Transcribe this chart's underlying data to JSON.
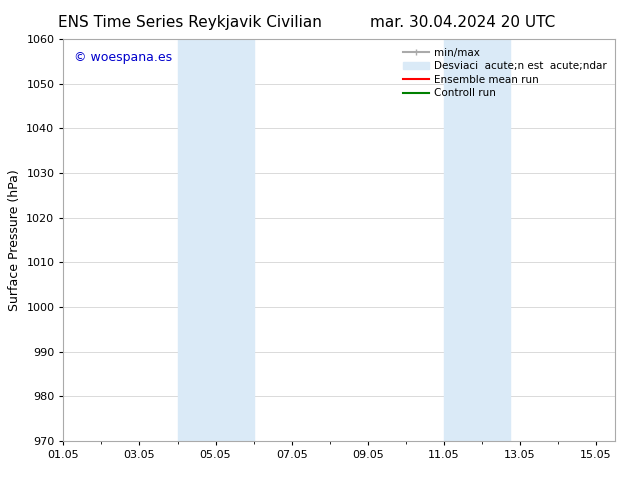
{
  "title_left": "ENS Time Series Reykjavik Civilian",
  "title_right": "mar. 30.04.2024 20 UTC",
  "ylabel": "Surface Pressure (hPa)",
  "ylim": [
    970,
    1060
  ],
  "yticks": [
    970,
    980,
    990,
    1000,
    1010,
    1020,
    1030,
    1040,
    1050,
    1060
  ],
  "xtick_labels": [
    "01.05",
    "03.05",
    "05.05",
    "07.05",
    "09.05",
    "11.05",
    "13.05",
    "15.05"
  ],
  "xtick_positions": [
    1,
    3,
    5,
    7,
    9,
    11,
    13,
    15
  ],
  "xlim": [
    1,
    15.5
  ],
  "shaded_bands": [
    {
      "x_start": 4.0,
      "x_end": 6.0
    },
    {
      "x_start": 11.0,
      "x_end": 12.75
    }
  ],
  "shaded_color": "#daeaf7",
  "watermark_text": "© woespana.es",
  "watermark_color": "#0000cc",
  "legend_label_minmax": "min/max",
  "legend_label_std": "Desviaci  acute;n est  acute;ndar",
  "legend_label_ensemble": "Ensemble mean run",
  "legend_label_control": "Controll run",
  "legend_color_minmax": "#aaaaaa",
  "legend_color_std": "#daeaf7",
  "legend_color_ensemble": "red",
  "legend_color_control": "green",
  "bg_color": "#ffffff",
  "grid_color": "#cccccc",
  "title_fontsize": 11,
  "tick_fontsize": 8,
  "ylabel_fontsize": 9,
  "watermark_fontsize": 9,
  "legend_fontsize": 7.5
}
